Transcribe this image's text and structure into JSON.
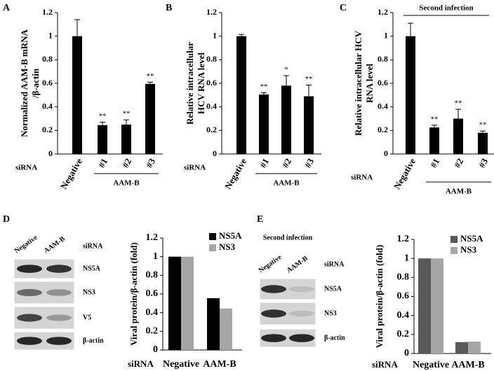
{
  "chart_data": [
    {
      "type": "bar",
      "panel": "A",
      "ylabel": [
        "Normalized AAM-B mRNA",
        "/β-actin"
      ],
      "categories": [
        "Negative",
        "#1",
        "#2",
        "#3"
      ],
      "values": [
        1,
        0.245,
        0.25,
        0.595
      ],
      "errors": [
        0.14,
        0.025,
        0.04,
        0.015
      ],
      "annotations": [
        null,
        "**",
        "**",
        "**"
      ],
      "x_prefix": "siRNA",
      "group_label": "AAM-B",
      "color": "#000000",
      "ylim": [
        0,
        1.2
      ],
      "yticks": [
        0,
        0.2,
        0.4,
        0.6,
        0.8,
        1,
        1.2
      ]
    },
    {
      "type": "bar",
      "panel": "B",
      "ylabel": [
        "Relative intracellular",
        "HCV RNA level"
      ],
      "categories": [
        "Negative",
        "#1",
        "#2",
        "#3"
      ],
      "values": [
        1,
        0.505,
        0.58,
        0.49
      ],
      "errors": [
        0.015,
        0.015,
        0.085,
        0.095
      ],
      "annotations": [
        null,
        "**",
        "*",
        "**"
      ],
      "x_prefix": "siRNA",
      "group_label": "AAM-B",
      "color": "#000000",
      "ylim": [
        0,
        1.2
      ],
      "yticks": [
        0,
        0.2,
        0.4,
        0.6,
        0.8,
        1,
        1.2
      ]
    },
    {
      "type": "bar",
      "panel": "C",
      "header": "Second infection",
      "ylabel": [
        "Relative intracellular HCV",
        "RNA level"
      ],
      "categories": [
        "Negative",
        "#1",
        "#2",
        "#3"
      ],
      "values": [
        1,
        0.225,
        0.3,
        0.18
      ],
      "errors": [
        0.11,
        0.02,
        0.08,
        0.015
      ],
      "annotations": [
        null,
        "**",
        "**",
        "**"
      ],
      "x_prefix": "siRNA",
      "group_label": "AAM-B",
      "color": "#000000",
      "ylim": [
        0,
        1.2
      ],
      "yticks": [
        0,
        0.2,
        0.4,
        0.6,
        0.8,
        1,
        1.2
      ]
    },
    {
      "type": "grouped_bar",
      "ylabel": "Viral protein/β-actin (fold)",
      "x_prefix": "siRNA",
      "categories": [
        "Negative",
        "AAM-B"
      ],
      "series": [
        {
          "name": "NS5A",
          "color": "#000000",
          "values": [
            1,
            0.555
          ]
        },
        {
          "name": "NS3",
          "color": "#a6a6a6",
          "values": [
            1,
            0.445
          ]
        }
      ],
      "ylim": [
        0,
        1.2
      ],
      "yticks": [
        0,
        0.2,
        0.4,
        0.6,
        0.8,
        1,
        1.2
      ],
      "legend": "upper right"
    },
    {
      "type": "grouped_bar",
      "ylabel": "Viral protein/β-actin (fold)",
      "x_prefix": "siRNA",
      "categories": [
        "Negative",
        "AAM-B"
      ],
      "series": [
        {
          "name": "NS5A",
          "color": "#595959",
          "values": [
            1,
            0.12
          ]
        },
        {
          "name": "NS3",
          "color": "#a6a6a6",
          "values": [
            1,
            0.125
          ]
        }
      ],
      "ylim": [
        0,
        1.2
      ],
      "yticks": [
        0,
        0.2,
        0.4,
        0.6,
        0.8,
        1,
        1.2
      ],
      "legend": "upper right"
    }
  ],
  "blots": [
    {
      "panel": "D",
      "lanes": [
        "Negative",
        "AAM-B"
      ],
      "lane_prefix": "siRNA",
      "rows": [
        "NS5A",
        "NS3",
        "V5",
        "β-actin"
      ]
    },
    {
      "panel": "E",
      "header": "Second infection",
      "lanes": [
        "Negative",
        "AAM-B"
      ],
      "lane_prefix": "siRNA",
      "rows": [
        "NS5A",
        "NS3",
        "β-actin"
      ]
    }
  ]
}
